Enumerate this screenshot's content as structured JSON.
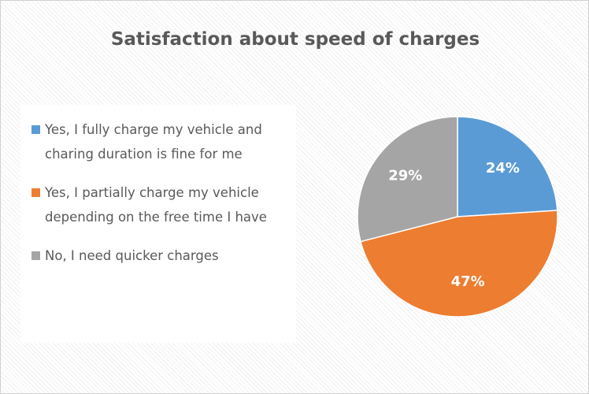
{
  "chart_data": {
    "type": "pie",
    "title": "Satisfaction about speed of charges",
    "categories": [
      "Yes, I fully charge my vehicle and charing duration is fine for me",
      "Yes, I partially charge my vehicle depending on the free time I have",
      "No, I need quicker charges"
    ],
    "values": [
      24,
      47,
      29
    ],
    "value_labels": [
      "24%",
      "47%",
      "29%"
    ],
    "colors": [
      "#5b9bd5",
      "#ed7d31",
      "#a5a5a5"
    ],
    "legend": "left"
  }
}
